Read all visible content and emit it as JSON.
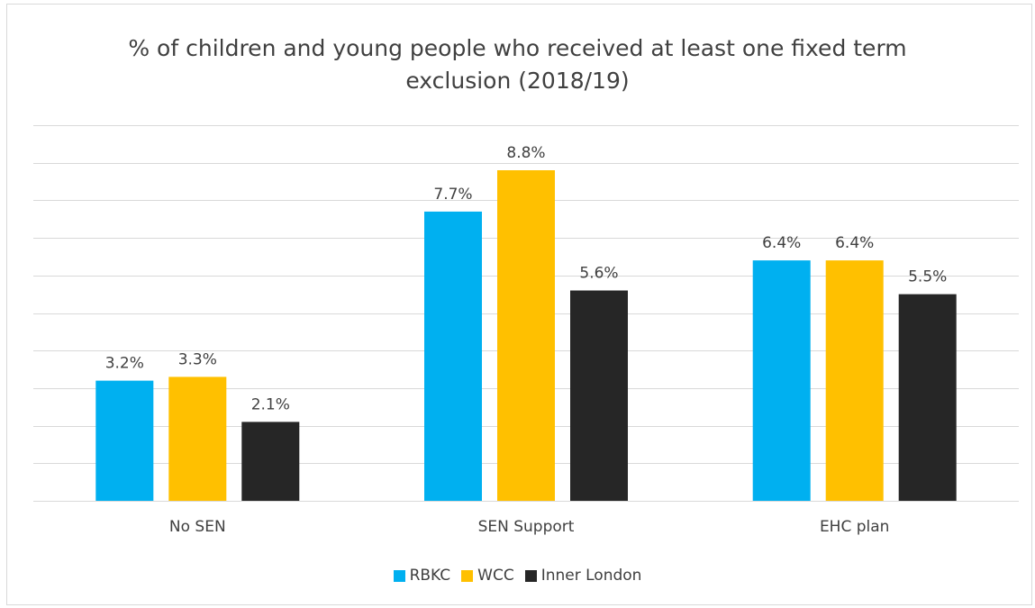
{
  "chart_data": {
    "type": "bar",
    "title": "% of children and young people who received at least one fixed term exclusion (2018/19)",
    "title_lines": [
      "% of children and young people who received at least one fixed term",
      "exclusion (2018/19)"
    ],
    "categories": [
      "No SEN",
      "SEN Support",
      "EHC plan"
    ],
    "series": [
      {
        "name": "RBKC",
        "color": "#00b0f0",
        "values": [
          3.2,
          7.7,
          6.4
        ],
        "labels": [
          "3.2%",
          "7.7%",
          "6.4%"
        ]
      },
      {
        "name": "WCC",
        "color": "#ffc000",
        "values": [
          3.3,
          8.8,
          6.4
        ],
        "labels": [
          "3.3%",
          "8.8%",
          "6.4%"
        ]
      },
      {
        "name": "Inner London",
        "color": "#262626",
        "values": [
          2.1,
          5.6,
          5.5
        ],
        "labels": [
          "2.1%",
          "5.6%",
          "5.5%"
        ]
      }
    ],
    "ylim": [
      0,
      10
    ],
    "grid": true,
    "legend_position": "bottom"
  }
}
